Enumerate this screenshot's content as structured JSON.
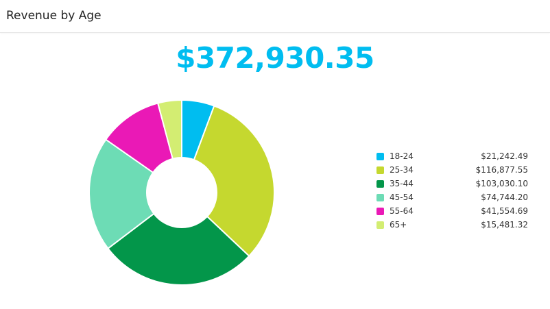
{
  "header": {
    "title": "Revenue by Age"
  },
  "total": {
    "value": "$372,930.35",
    "color": "#00bdf0"
  },
  "chart_data": {
    "type": "pie",
    "donut": true,
    "title": "",
    "legend_position": "right",
    "categories": [
      "18-24",
      "25-34",
      "35-44",
      "45-54",
      "55-64",
      "65+"
    ],
    "values": [
      21242.49,
      116877.55,
      103030.1,
      74744.2,
      41554.69,
      15481.32
    ],
    "value_labels": [
      "$21,242.49",
      "$116,877.55",
      "$103,030.10",
      "$74,744.20",
      "$41,554.69",
      "$15,481.32"
    ],
    "colors": [
      "#00bdf0",
      "#c5d82f",
      "#03964a",
      "#6ddcb5",
      "#ea19b6",
      "#d3ed72"
    ]
  }
}
